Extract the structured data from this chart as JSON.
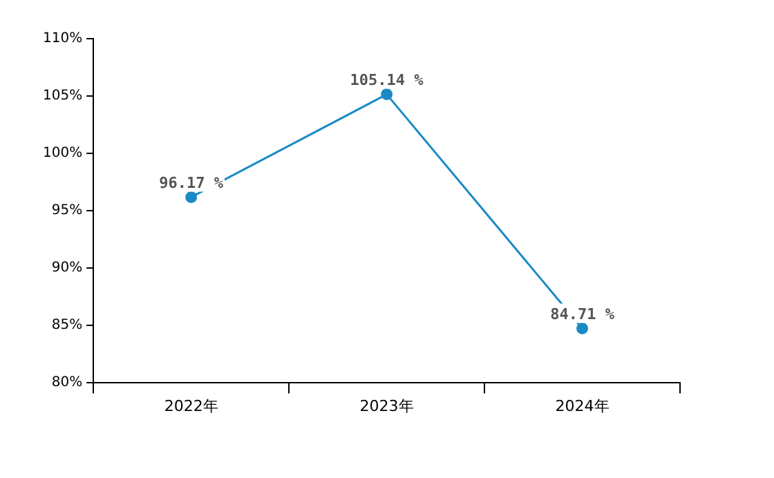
{
  "chart_data": {
    "type": "line",
    "categories": [
      "2022年",
      "2023年",
      "2024年"
    ],
    "series": [
      {
        "color": "#1a8ac6",
        "values": [
          96.17,
          105.14,
          84.71
        ],
        "value_labels": [
          "96.17 %",
          "105.14 %",
          "84.71 %"
        ]
      }
    ],
    "ylim": [
      80,
      110
    ],
    "yticks": [
      {
        "value": 80,
        "label": "80%"
      },
      {
        "value": 85,
        "label": "85%"
      },
      {
        "value": 90,
        "label": "90%"
      },
      {
        "value": 95,
        "label": "95%"
      },
      {
        "value": 100,
        "label": "100%"
      },
      {
        "value": 105,
        "label": "105%"
      },
      {
        "value": 110,
        "label": "110%"
      }
    ],
    "grid": false,
    "legend": false,
    "marker": "circle",
    "line_style": "solid"
  }
}
